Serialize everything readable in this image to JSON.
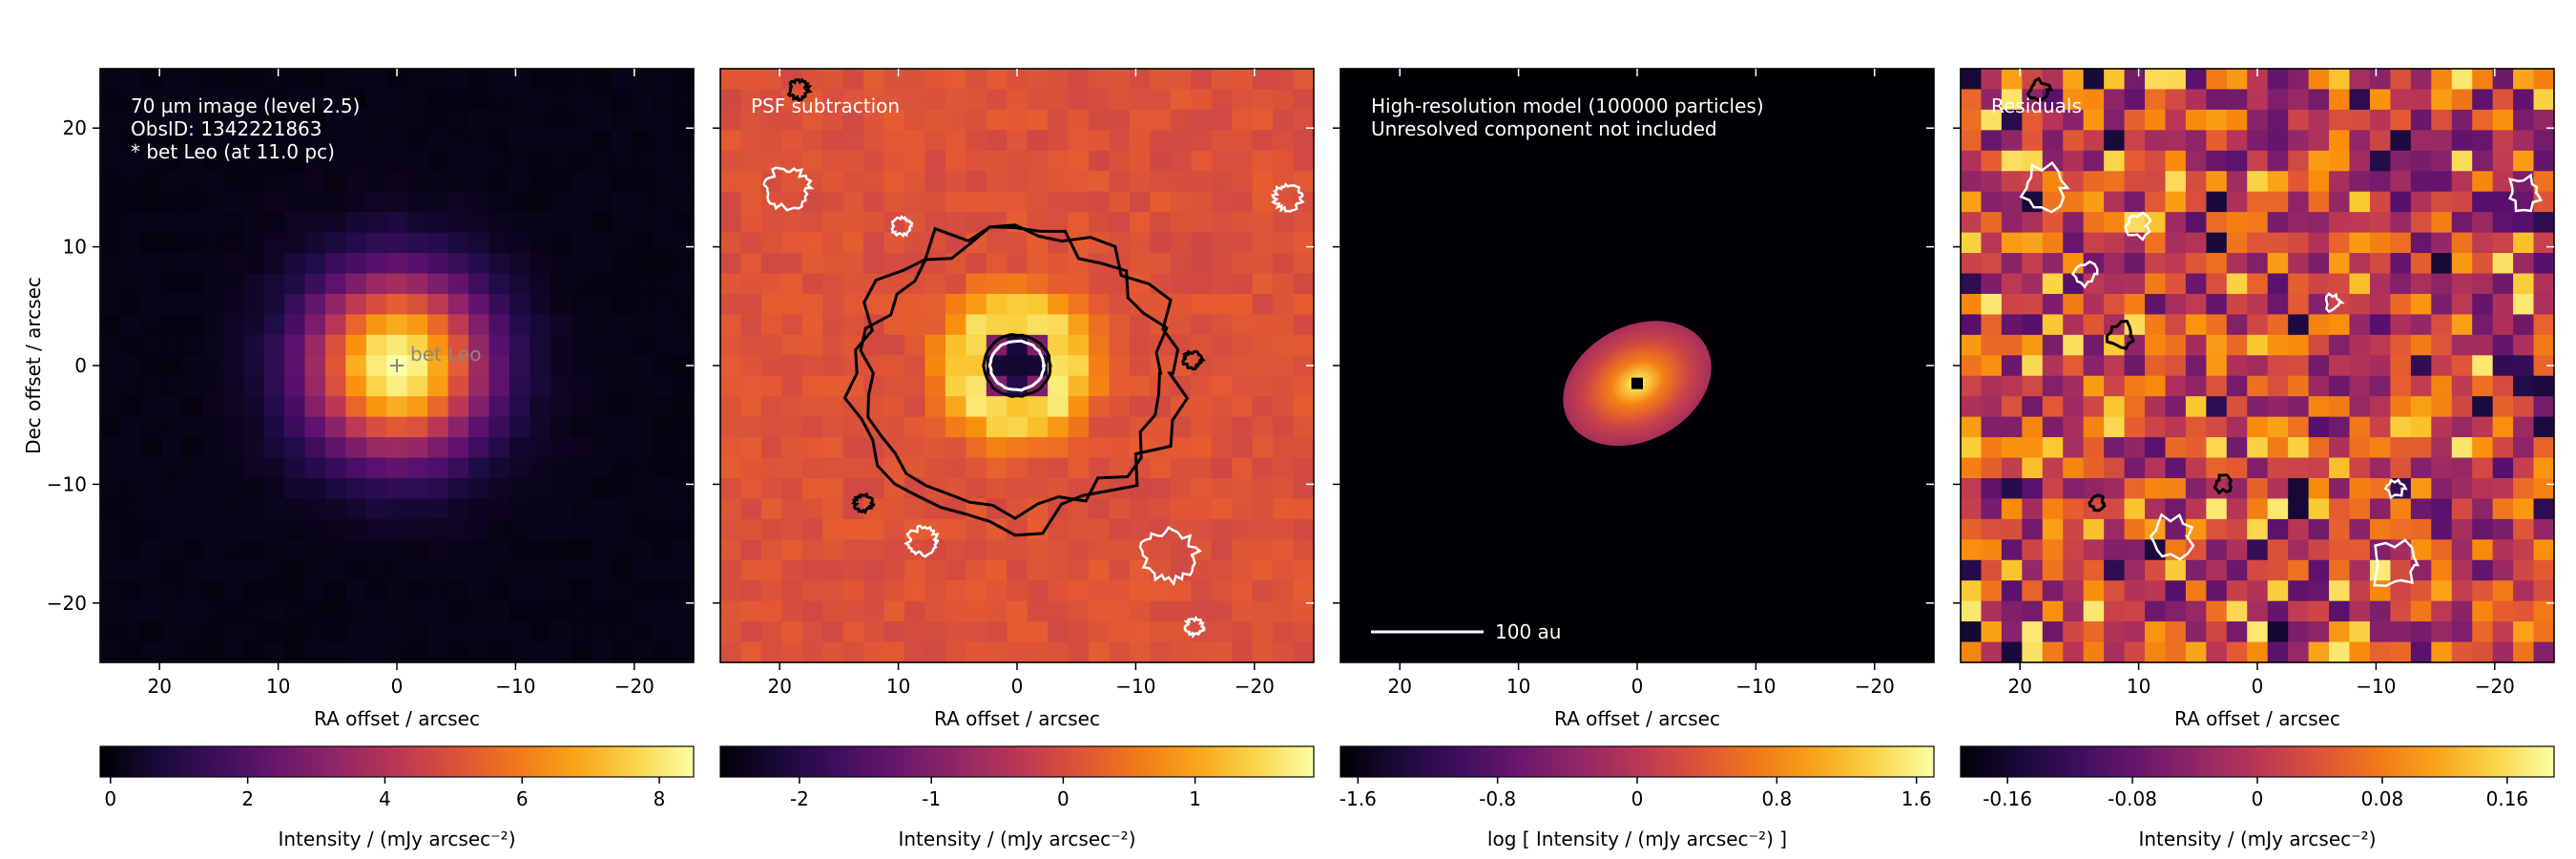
{
  "figure": {
    "ylabel": "Dec offset / arcsec",
    "xlabel": "RA offset / arcsec"
  },
  "chart_data": [
    {
      "type": "heatmap",
      "panel": "image",
      "annotation": [
        "70 µm image (level 2.5)",
        "ObsID: 1342221863",
        "* bet Leo (at 11.0 pc)"
      ],
      "star_label": "bet Leo",
      "xlabel": "RA offset / arcsec",
      "ylabel": "Dec offset / arcsec",
      "xlim": [
        25,
        -25
      ],
      "ylim": [
        -25,
        25
      ],
      "xticks": [
        20,
        10,
        0,
        -10,
        -20
      ],
      "yticks": [
        20,
        10,
        0,
        -10,
        -20
      ],
      "colormap": "inferno",
      "colorbar": {
        "label": "Intensity / (mJy arcsec⁻²)",
        "range": [
          -0.15,
          8.5
        ],
        "ticks": [
          0,
          2,
          4,
          6,
          8
        ],
        "tick_labels": [
          "0",
          "2",
          "4",
          "6",
          "8"
        ]
      }
    },
    {
      "type": "heatmap",
      "panel": "psf_subtraction",
      "annotation": [
        "PSF subtraction"
      ],
      "xlabel": "RA offset / arcsec",
      "xlim": [
        25,
        -25
      ],
      "ylim": [
        -25,
        25
      ],
      "xticks": [
        20,
        10,
        0,
        -10,
        -20
      ],
      "colormap": "inferno",
      "contours": "black (positive) and white (negative)",
      "colorbar": {
        "label": "Intensity / (mJy arcsec⁻²)",
        "range": [
          -2.6,
          1.9
        ],
        "ticks": [
          -2,
          -1,
          0,
          1
        ],
        "tick_labels": [
          "-2",
          "-1",
          "0",
          "1"
        ]
      }
    },
    {
      "type": "heatmap",
      "panel": "model",
      "annotation": [
        "High-resolution model (100000 particles)",
        "Unresolved component not included"
      ],
      "scalebar_label": "100 au",
      "xlabel": "RA offset / arcsec",
      "xlim": [
        25,
        -25
      ],
      "ylim": [
        -25,
        25
      ],
      "xticks": [
        20,
        10,
        0,
        -10,
        -20
      ],
      "colormap": "inferno",
      "colorbar": {
        "label": "log [ Intensity / (mJy arcsec⁻²) ]",
        "range": [
          -1.7,
          1.7
        ],
        "ticks": [
          -1.6,
          -0.8,
          0,
          0.8,
          1.6
        ],
        "tick_labels": [
          "-1.6",
          "-0.8",
          "0",
          "0.8",
          "1.6"
        ]
      }
    },
    {
      "type": "heatmap",
      "panel": "residuals",
      "annotation": [
        "Residuals"
      ],
      "xlabel": "RA offset / arcsec",
      "xlim": [
        25,
        -25
      ],
      "ylim": [
        -25,
        25
      ],
      "xticks": [
        20,
        10,
        0,
        -10,
        -20
      ],
      "colormap": "inferno",
      "colorbar": {
        "label": "Intensity / (mJy arcsec⁻²)",
        "range": [
          -0.19,
          0.19
        ],
        "ticks": [
          -0.16,
          -0.08,
          0,
          0.08,
          0.16
        ],
        "tick_labels": [
          "-0.16",
          "-0.08",
          "0",
          "0.08",
          "0.16"
        ]
      }
    }
  ]
}
